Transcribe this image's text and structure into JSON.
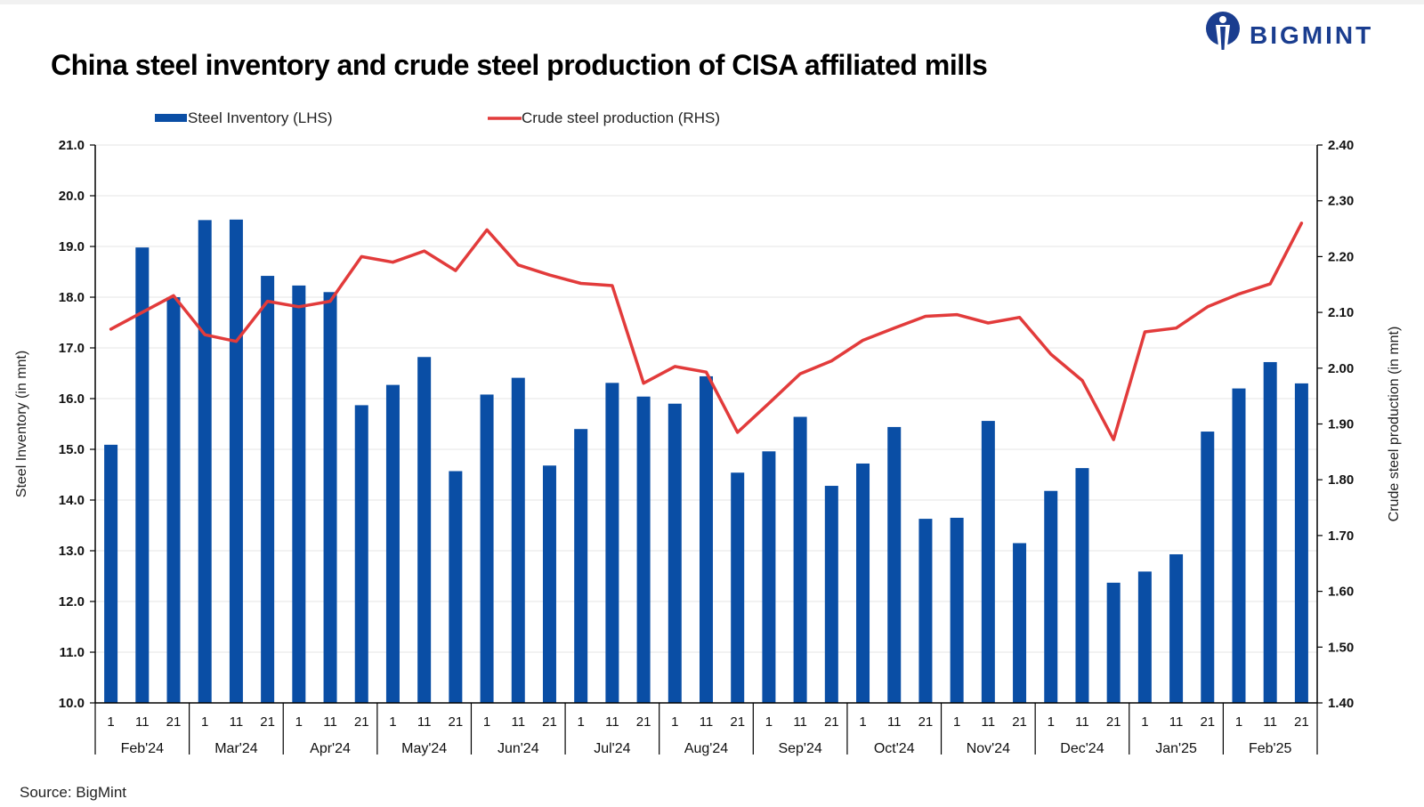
{
  "title": "China steel inventory and crude steel production of CISA affiliated mills",
  "brand": {
    "name": "BIGMINT",
    "color": "#1a3d8f",
    "icon": "bigmint-logo-icon"
  },
  "source": "Source: BigMint",
  "chart_data": {
    "type": "bar",
    "legend_position": "top",
    "grid": true,
    "y_left": {
      "label": "Steel Inventory (in mnt)",
      "lim": [
        10.0,
        21.0
      ],
      "ticks": [
        "10.0",
        "11.0",
        "12.0",
        "13.0",
        "14.0",
        "15.0",
        "16.0",
        "17.0",
        "18.0",
        "19.0",
        "20.0",
        "21.0"
      ]
    },
    "y_right": {
      "label": "Crude steel production (in mnt)",
      "lim": [
        1.4,
        2.4
      ],
      "ticks": [
        "1.40",
        "1.50",
        "1.60",
        "1.70",
        "1.80",
        "1.90",
        "2.00",
        "2.10",
        "2.20",
        "2.30",
        "2.40"
      ]
    },
    "day_labels": [
      "1",
      "11",
      "21"
    ],
    "months": [
      "Feb'24",
      "Mar'24",
      "Apr'24",
      "May'24",
      "Jun'24",
      "Jul'24",
      "Aug'24",
      "Sep'24",
      "Oct'24",
      "Nov'24",
      "Dec'24",
      "Jan'25",
      "Feb'25"
    ],
    "series": [
      {
        "name": "Steel Inventory (LHS)",
        "type": "bar",
        "axis": "left",
        "color": "#0a4ea5",
        "values": [
          15.09,
          18.98,
          18.0,
          19.52,
          19.53,
          18.42,
          18.23,
          18.1,
          15.87,
          16.27,
          16.82,
          14.57,
          16.08,
          16.41,
          14.68,
          15.4,
          16.31,
          16.04,
          15.9,
          16.44,
          14.54,
          14.96,
          15.64,
          14.28,
          14.72,
          15.44,
          13.63,
          13.65,
          15.56,
          13.15,
          14.18,
          14.63,
          12.37,
          12.59,
          12.93,
          15.35,
          16.2,
          16.72,
          16.3
        ]
      },
      {
        "name": "Crude steel production (RHS)",
        "type": "line",
        "axis": "right",
        "color": "#e23b3b",
        "values": [
          2.07,
          2.1,
          2.13,
          2.06,
          2.048,
          2.12,
          2.11,
          2.12,
          2.2,
          2.19,
          2.21,
          2.175,
          2.248,
          2.185,
          2.167,
          2.152,
          2.148,
          1.973,
          2.003,
          1.993,
          1.885,
          1.937,
          1.99,
          2.013,
          2.05,
          2.072,
          2.093,
          2.096,
          2.081,
          2.091,
          2.025,
          1.978,
          1.872,
          2.065,
          2.072,
          2.11,
          2.133,
          2.151,
          2.26
        ]
      }
    ]
  }
}
